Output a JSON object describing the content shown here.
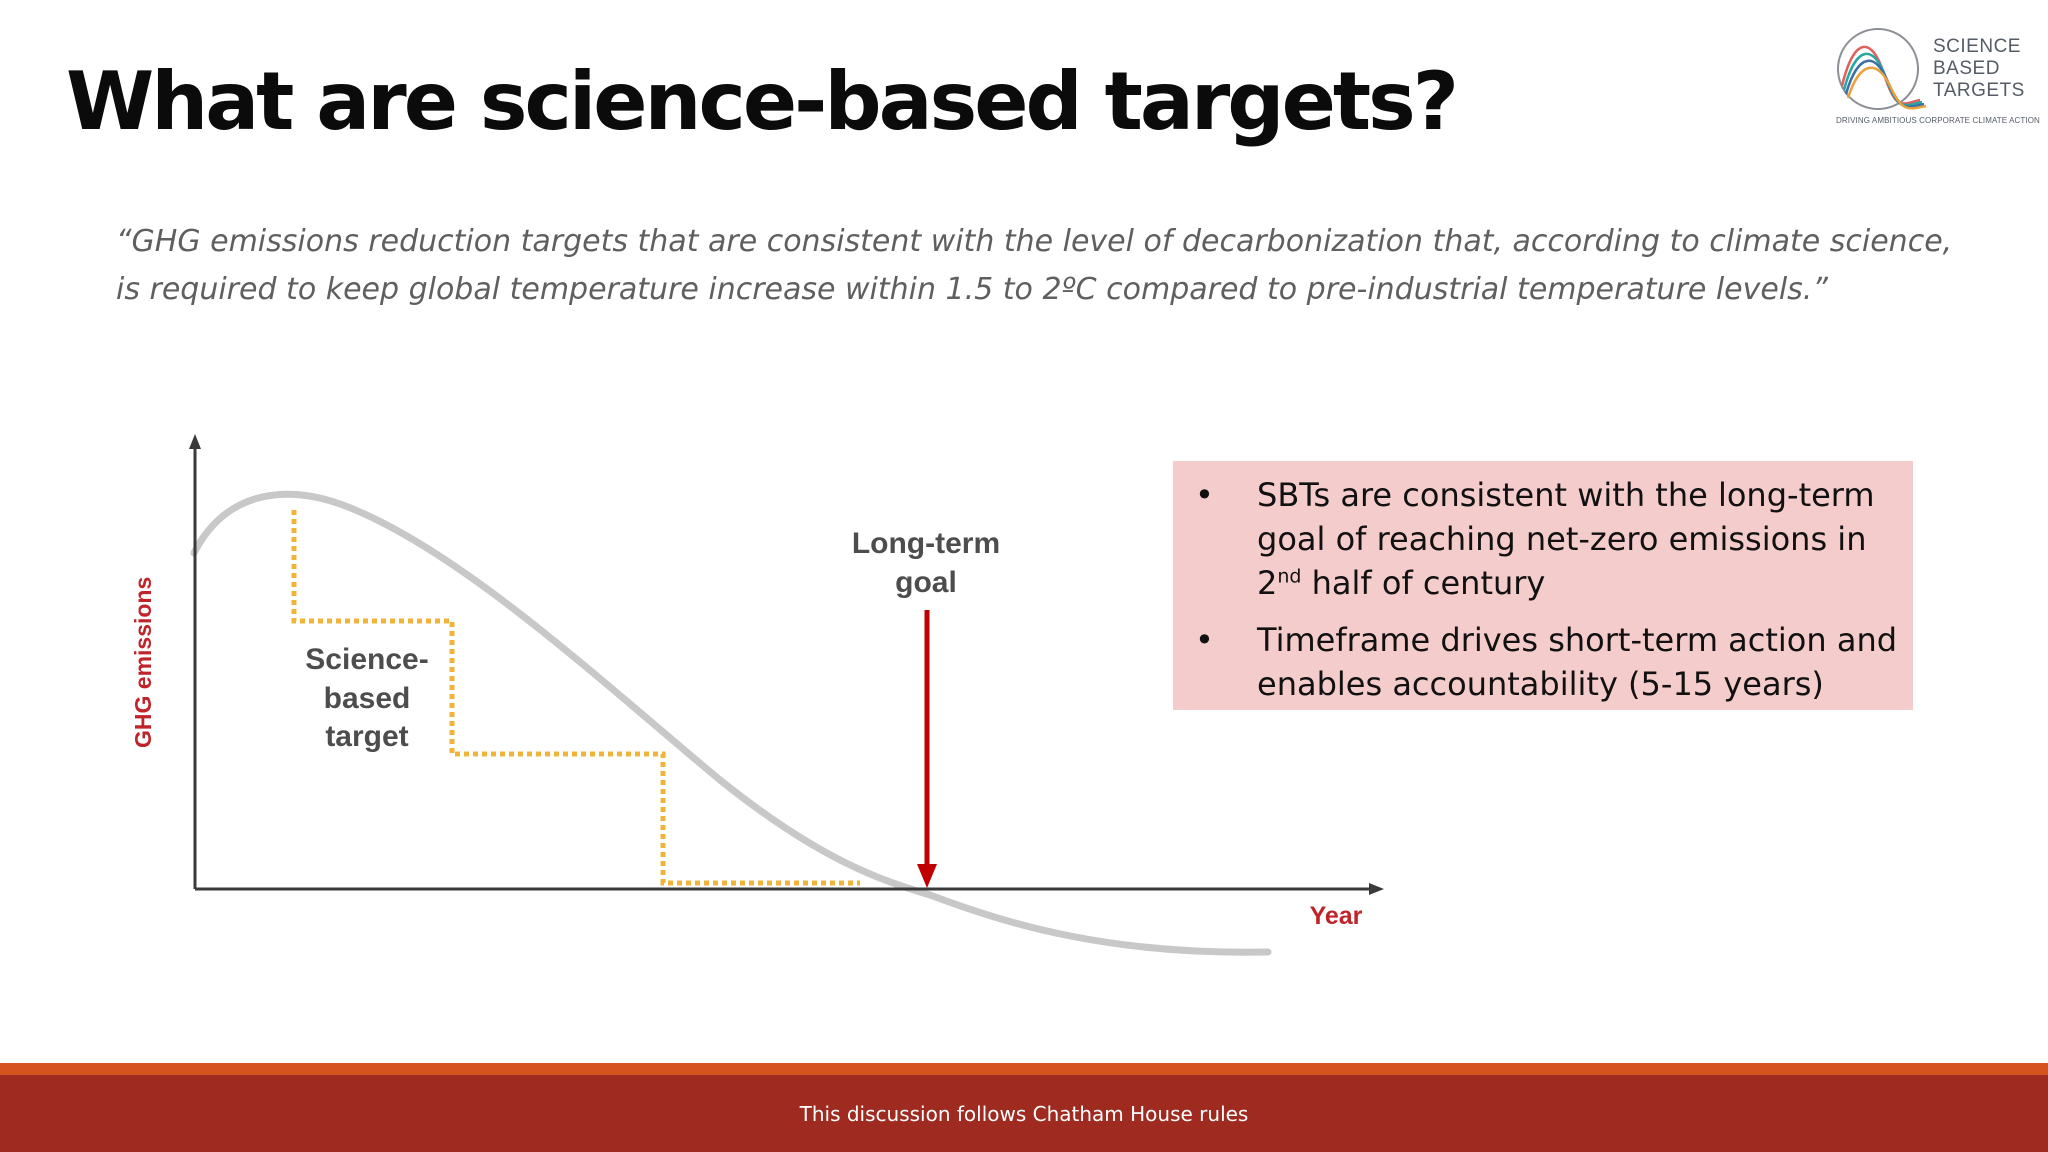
{
  "slide": {
    "title": "What are science-based targets?",
    "quote_line1": "“GHG emissions reduction targets that are consistent with the level of decarbonization that, according to climate science,",
    "quote_line2": "is required to keep global temperature increase within 1.5 to 2ºC compared to pre-industrial temperature levels.”"
  },
  "logo": {
    "line1": "SCIENCE",
    "line2": "BASED",
    "line3": "TARGETS",
    "tagline": "DRIVING AMBITIOUS CORPORATE CLIMATE ACTION"
  },
  "diagram": {
    "y_axis_label": "GHG emissions",
    "x_axis_label": "Year",
    "target_label_line1": "Science-",
    "target_label_line2": "based",
    "target_label_line3": "target",
    "goal_label_line1": "Long-term",
    "goal_label_line2": "goal",
    "colors": {
      "curve": "#c8c8c8",
      "steps": "#f0b33c",
      "arrow": "#c00000",
      "axis_label": "#c0242a"
    }
  },
  "info_box": {
    "bullet_symbol": "•",
    "item1_text_a": "SBTs are consistent with the long-term goal of reaching net-zero emissions in 2",
    "item1_sup": "nd",
    "item1_text_b": " half of century",
    "item2_text": "Timeframe drives short-term action and enables accountability (5-15 years)",
    "background": "#f4cccc"
  },
  "footer": {
    "text": "This discussion follows Chatham House rules",
    "band_color": "#9e2a20",
    "stripe_color": "#d6531f"
  }
}
